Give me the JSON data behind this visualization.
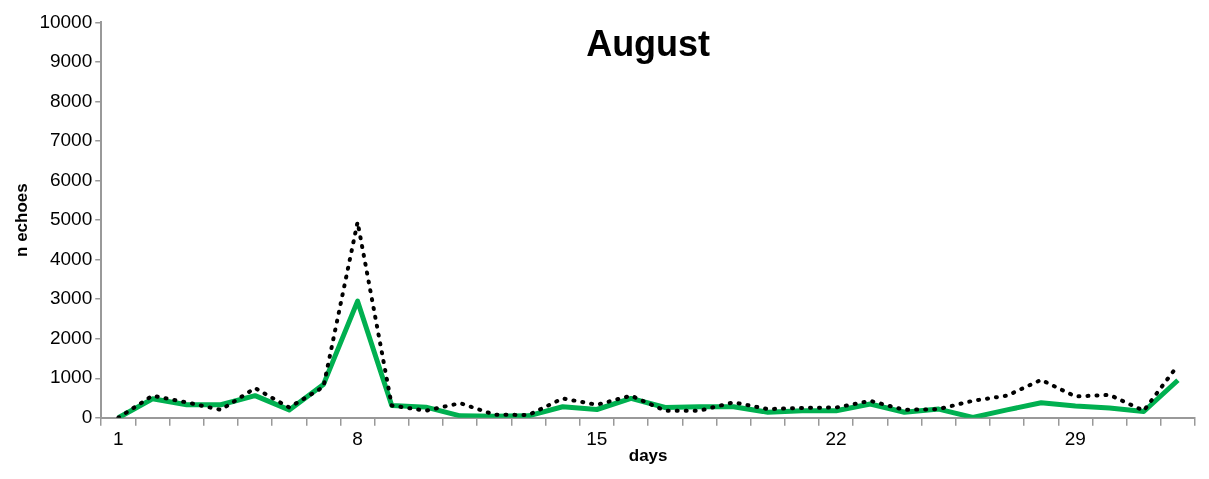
{
  "chart_data": {
    "type": "line",
    "title": "August",
    "xlabel": "days",
    "ylabel": "n echoes",
    "categories": [
      "1",
      null,
      null,
      null,
      null,
      null,
      null,
      "8",
      null,
      null,
      null,
      null,
      null,
      null,
      "15",
      null,
      null,
      null,
      null,
      null,
      null,
      "22",
      null,
      null,
      null,
      null,
      null,
      null,
      "29",
      null,
      null,
      null
    ],
    "series": [
      {
        "color": "#000000",
        "line_style": "dotted",
        "values": [
          0,
          560,
          390,
          200,
          750,
          260,
          780,
          4950,
          310,
          180,
          370,
          80,
          70,
          490,
          330,
          560,
          180,
          180,
          390,
          220,
          250,
          260,
          430,
          200,
          220,
          430,
          560,
          960,
          540,
          580,
          180,
          1330
        ]
      },
      {
        "color": "#00b050",
        "line_style": "solid",
        "values": [
          0,
          480,
          330,
          330,
          560,
          200,
          840,
          2950,
          310,
          270,
          50,
          40,
          50,
          280,
          210,
          490,
          260,
          280,
          280,
          140,
          180,
          180,
          350,
          140,
          220,
          10,
          200,
          380,
          300,
          250,
          160,
          950
        ]
      }
    ],
    "ylim": [
      0,
      10000
    ],
    "yticks": [
      0,
      1000,
      2000,
      3000,
      4000,
      5000,
      6000,
      7000,
      8000,
      9000,
      10000
    ],
    "grid": false,
    "legend": false,
    "marker": "none"
  }
}
